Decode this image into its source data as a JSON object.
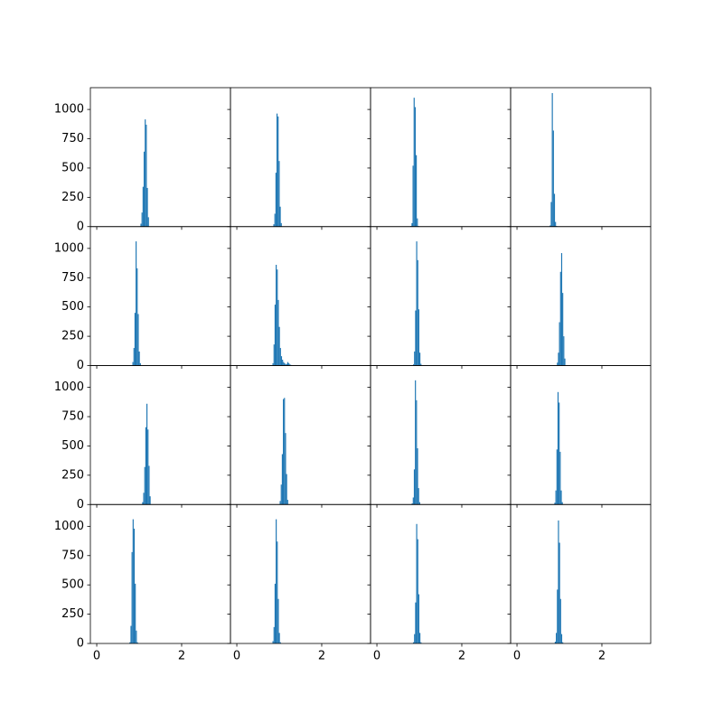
{
  "chart_data": [
    {
      "type": "histogram",
      "color": "#1f77b4",
      "xlim": [
        -0.15,
        3.15
      ],
      "ylim": [
        0,
        1186
      ],
      "xticks": [
        0,
        2
      ],
      "yticks": [
        0,
        250,
        500,
        750,
        1000
      ],
      "bins": [
        1.03,
        1.055,
        1.08,
        1.105,
        1.13,
        1.155,
        1.18,
        1.205,
        1.23
      ],
      "values": [
        25,
        120,
        340,
        640,
        915,
        870,
        330,
        80
      ]
    },
    {
      "type": "histogram",
      "color": "#1f77b4",
      "xlim": [
        -0.15,
        3.15
      ],
      "ylim": [
        0,
        1186
      ],
      "xticks": [
        0,
        2
      ],
      "yticks": [
        0,
        250,
        500,
        750,
        1000
      ],
      "bins": [
        0.86,
        0.885,
        0.91,
        0.935,
        0.96,
        0.985,
        1.01,
        1.035,
        1.06
      ],
      "values": [
        20,
        110,
        460,
        965,
        940,
        560,
        170,
        30
      ]
    },
    {
      "type": "histogram",
      "color": "#1f77b4",
      "xlim": [
        -0.15,
        3.15
      ],
      "ylim": [
        0,
        1186
      ],
      "xticks": [
        0,
        2
      ],
      "yticks": [
        0,
        250,
        500,
        750,
        1000
      ],
      "bins": [
        0.79,
        0.815,
        0.84,
        0.865,
        0.89,
        0.915,
        0.94,
        0.965,
        0.99
      ],
      "values": [
        5,
        30,
        520,
        1100,
        1020,
        610,
        70,
        5
      ]
    },
    {
      "type": "histogram",
      "color": "#1f77b4",
      "xlim": [
        -0.15,
        3.15
      ],
      "ylim": [
        0,
        1186
      ],
      "xticks": [
        0,
        2
      ],
      "yticks": [
        0,
        250,
        500,
        750,
        1000
      ],
      "bins": [
        0.77,
        0.795,
        0.82,
        0.845,
        0.87,
        0.895,
        0.92,
        0.945,
        0.97
      ],
      "values": [
        10,
        210,
        1140,
        820,
        280,
        40,
        5,
        0
      ]
    },
    {
      "type": "histogram",
      "color": "#1f77b4",
      "xlim": [
        -0.15,
        3.15
      ],
      "ylim": [
        0,
        1186
      ],
      "xticks": [
        0,
        2
      ],
      "yticks": [
        0,
        250,
        500,
        750,
        1000
      ],
      "bins": [
        0.84,
        0.865,
        0.89,
        0.915,
        0.94,
        0.965,
        0.99,
        1.015,
        1.04
      ],
      "values": [
        30,
        150,
        450,
        1060,
        830,
        440,
        120,
        20
      ]
    },
    {
      "type": "histogram",
      "color": "#1f77b4",
      "xlim": [
        -0.15,
        3.15
      ],
      "ylim": [
        0,
        1186
      ],
      "xticks": [
        0,
        2
      ],
      "yticks": [
        0,
        250,
        500,
        750,
        1000
      ],
      "bins": [
        0.84,
        0.865,
        0.89,
        0.915,
        0.94,
        0.965,
        0.99,
        1.015,
        1.04,
        1.065,
        1.09,
        1.115,
        1.14,
        1.165,
        1.19,
        1.215,
        1.24,
        1.265,
        1.29
      ],
      "values": [
        20,
        180,
        520,
        860,
        820,
        560,
        330,
        150,
        80,
        50,
        30,
        20,
        10,
        15,
        30,
        20,
        10,
        5
      ]
    },
    {
      "type": "histogram",
      "color": "#1f77b4",
      "xlim": [
        -0.15,
        3.15
      ],
      "ylim": [
        0,
        1186
      ],
      "xticks": [
        0,
        2
      ],
      "yticks": [
        0,
        250,
        500,
        750,
        1000
      ],
      "bins": [
        0.85,
        0.875,
        0.9,
        0.925,
        0.95,
        0.975,
        1.0,
        1.025,
        1.05
      ],
      "values": [
        10,
        120,
        470,
        1060,
        900,
        480,
        110,
        15
      ]
    },
    {
      "type": "histogram",
      "color": "#1f77b4",
      "xlim": [
        -0.15,
        3.15
      ],
      "ylim": [
        0,
        1186
      ],
      "xticks": [
        0,
        2
      ],
      "yticks": [
        0,
        250,
        500,
        750,
        1000
      ],
      "bins": [
        0.94,
        0.965,
        0.99,
        1.015,
        1.04,
        1.065,
        1.09,
        1.115,
        1.14
      ],
      "values": [
        25,
        110,
        370,
        800,
        960,
        620,
        250,
        60
      ]
    },
    {
      "type": "histogram",
      "color": "#1f77b4",
      "xlim": [
        -0.15,
        3.15
      ],
      "ylim": [
        0,
        1186
      ],
      "xticks": [
        0,
        2
      ],
      "yticks": [
        0,
        250,
        500,
        750,
        1000
      ],
      "bins": [
        1.07,
        1.095,
        1.12,
        1.145,
        1.17,
        1.195,
        1.22,
        1.245,
        1.27
      ],
      "values": [
        20,
        100,
        320,
        660,
        860,
        640,
        330,
        70
      ]
    },
    {
      "type": "histogram",
      "color": "#1f77b4",
      "xlim": [
        -0.15,
        3.15
      ],
      "ylim": [
        0,
        1186
      ],
      "xticks": [
        0,
        2
      ],
      "yticks": [
        0,
        250,
        500,
        750,
        1000
      ],
      "bins": [
        1.01,
        1.035,
        1.06,
        1.085,
        1.11,
        1.135,
        1.16,
        1.185,
        1.21
      ],
      "values": [
        30,
        170,
        430,
        900,
        910,
        610,
        260,
        40
      ]
    },
    {
      "type": "histogram",
      "color": "#1f77b4",
      "xlim": [
        -0.15,
        3.15
      ],
      "ylim": [
        0,
        1186
      ],
      "xticks": [
        0,
        2
      ],
      "yticks": [
        0,
        250,
        500,
        750,
        1000
      ],
      "bins": [
        0.82,
        0.845,
        0.87,
        0.895,
        0.92,
        0.945,
        0.97,
        0.995,
        1.02
      ],
      "values": [
        10,
        60,
        300,
        1060,
        890,
        480,
        140,
        20
      ]
    },
    {
      "type": "histogram",
      "color": "#1f77b4",
      "xlim": [
        -0.15,
        3.15
      ],
      "ylim": [
        0,
        1186
      ],
      "xticks": [
        0,
        2
      ],
      "yticks": [
        0,
        250,
        500,
        750,
        1000
      ],
      "bins": [
        0.88,
        0.905,
        0.93,
        0.955,
        0.98,
        1.005,
        1.03,
        1.055,
        1.08
      ],
      "values": [
        15,
        120,
        470,
        960,
        870,
        450,
        120,
        20
      ]
    },
    {
      "type": "histogram",
      "color": "#1f77b4",
      "xlim": [
        -0.15,
        3.15
      ],
      "ylim": [
        0,
        1186
      ],
      "xticks": [
        0,
        2
      ],
      "yticks": [
        0,
        250,
        500,
        750,
        1000
      ],
      "bins": [
        0.77,
        0.795,
        0.82,
        0.845,
        0.87,
        0.895,
        0.92,
        0.945,
        0.97
      ],
      "values": [
        10,
        150,
        780,
        1060,
        980,
        510,
        110,
        10
      ]
    },
    {
      "type": "histogram",
      "color": "#1f77b4",
      "xlim": [
        -0.15,
        3.15
      ],
      "ylim": [
        0,
        1186
      ],
      "xticks": [
        0,
        2
      ],
      "yticks": [
        0,
        250,
        500,
        750,
        1000
      ],
      "bins": [
        0.84,
        0.865,
        0.89,
        0.915,
        0.94,
        0.965,
        0.99,
        1.015,
        1.04
      ],
      "values": [
        20,
        140,
        510,
        1060,
        870,
        380,
        90,
        10
      ]
    },
    {
      "type": "histogram",
      "color": "#1f77b4",
      "xlim": [
        -0.15,
        3.15
      ],
      "ylim": [
        0,
        1186
      ],
      "xticks": [
        0,
        2
      ],
      "yticks": [
        0,
        250,
        500,
        750,
        1000
      ],
      "bins": [
        0.85,
        0.875,
        0.9,
        0.925,
        0.95,
        0.975,
        1.0,
        1.025,
        1.05
      ],
      "values": [
        10,
        80,
        350,
        1020,
        890,
        420,
        90,
        10
      ]
    },
    {
      "type": "histogram",
      "color": "#1f77b4",
      "xlim": [
        -0.15,
        3.15
      ],
      "ylim": [
        0,
        1186
      ],
      "xticks": [
        0,
        2
      ],
      "yticks": [
        0,
        250,
        500,
        750,
        1000
      ],
      "bins": [
        0.89,
        0.915,
        0.94,
        0.965,
        0.99,
        1.015,
        1.04,
        1.065,
        1.09
      ],
      "values": [
        15,
        90,
        460,
        1050,
        860,
        380,
        80,
        10
      ]
    }
  ]
}
